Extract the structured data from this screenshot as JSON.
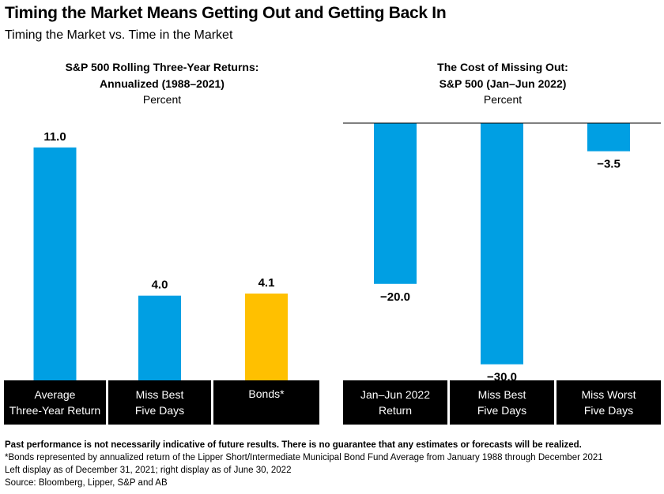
{
  "title": "Timing the Market Means Getting Out and Getting Back In",
  "subtitle": "Timing the Market vs. Time in the Market",
  "colors": {
    "bar": "#009FE3",
    "bonds": "#FFC000",
    "category_band": "#000000",
    "zero_line": "#000000"
  },
  "chart_data": [
    {
      "type": "bar",
      "title_lines": [
        "S&P 500 Rolling Three-Year Returns:",
        "Annualized (1988–2021)"
      ],
      "unit": "Percent",
      "categories": [
        [
          "Average",
          "Three-Year Return"
        ],
        [
          "Miss Best",
          "Five Days"
        ],
        [
          "Bonds*"
        ]
      ],
      "values": [
        11.0,
        4.0,
        4.1
      ],
      "value_labels": [
        "11.0",
        "4.0",
        "4.1"
      ],
      "bar_colors": [
        "#009FE3",
        "#009FE3",
        "#FFC000"
      ],
      "ylim": [
        0,
        12
      ]
    },
    {
      "type": "bar",
      "title_lines": [
        "The Cost of Missing Out:",
        "S&P 500 (Jan–Jun 2022)"
      ],
      "unit": "Percent",
      "categories": [
        [
          "Jan–Jun 2022",
          "Return"
        ],
        [
          "Miss Best",
          "Five Days"
        ],
        [
          "Miss Worst",
          "Five Days"
        ]
      ],
      "values": [
        -20.0,
        -30.0,
        -3.5
      ],
      "value_labels": [
        "−20.0",
        "−30.0",
        "−3.5"
      ],
      "bar_colors": [
        "#009FE3",
        "#009FE3",
        "#009FE3"
      ],
      "ylim": [
        -32,
        0
      ]
    }
  ],
  "footnotes": {
    "disclaimer": "Past performance is not necessarily indicative of future results. There is no guarantee that any estimates or forecasts will be realized.",
    "bonds_note": "*Bonds represented by annualized return of the Lipper Short/Intermediate Municipal Bond Fund Average from January 1988 through December 2021",
    "display_note": "Left display as of December 31, 2021; right display as of June 30, 2022",
    "source": "Source: Bloomberg, Lipper, S&P and AB"
  }
}
